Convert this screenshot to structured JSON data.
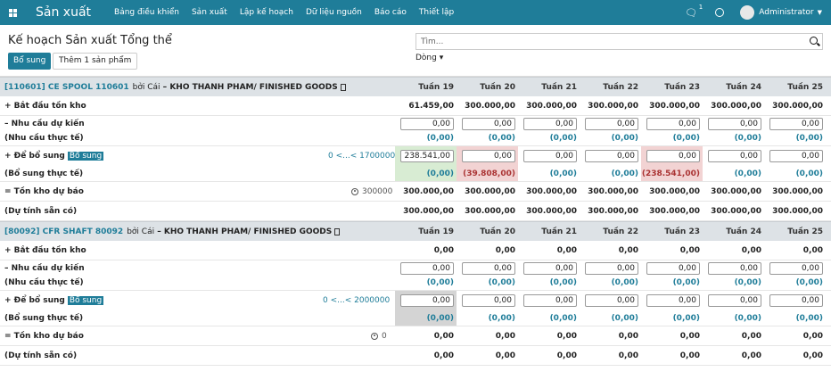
{
  "navbar": {
    "brand": "Sản xuất",
    "menu": [
      "Bảng điều khiển",
      "Sản xuất",
      "Lập kế hoạch",
      "Dữ liệu nguồn",
      "Báo cáo",
      "Thiết lập"
    ],
    "chat_count": "1",
    "user": "Administrator"
  },
  "control": {
    "title": "Kế hoạch Sản xuất Tổng thể",
    "btn_replenish": "Bổ sung",
    "btn_add": "Thêm 1 sản phẩm",
    "search_placeholder": "Tìm...",
    "groupby": "Dòng"
  },
  "products": [
    {
      "code": "[110601] CE SPOOL 110601",
      "unit_text": "bởi Cái",
      "warehouse": "KHO THANH PHAM/ FINISHED GOODS",
      "weeks": [
        "Tuần 19",
        "Tuần 20",
        "Tuần 21",
        "Tuần 22",
        "Tuần 23",
        "Tuần 24",
        "Tuần 25"
      ],
      "labels": {
        "start": "+ Bắt đầu tồn kho",
        "demand": "– Nhu cầu dự kiến",
        "demand_actual": "(Nhu cầu thực tế)",
        "replenish": "+ Để bổ sung",
        "replenish_tag": "Bổ sung",
        "replenish_actual": "(Bổ sung thực tế)",
        "forecast": "= Tồn kho dự báo",
        "available": "(Dự tính sẵn có)"
      },
      "range_text": "0 <...< 1700000",
      "safety_stock": "300000",
      "start": [
        "61.459,00",
        "300.000,00",
        "300.000,00",
        "300.000,00",
        "300.000,00",
        "300.000,00",
        "300.000,00"
      ],
      "demand": [
        "0,00",
        "0,00",
        "0,00",
        "0,00",
        "0,00",
        "0,00",
        "0,00"
      ],
      "demand_actual": [
        "(0,00)",
        "(0,00)",
        "(0,00)",
        "(0,00)",
        "(0,00)",
        "(0,00)",
        "(0,00)"
      ],
      "replenish": [
        "238.541,00",
        "0,00",
        "0,00",
        "0,00",
        "0,00",
        "0,00",
        "0,00"
      ],
      "replenish_actual": [
        "(0,00)",
        "(39.808,00)",
        "(0,00)",
        "(0,00)",
        "(238.541,00)",
        "(0,00)",
        "(0,00)"
      ],
      "forecast": [
        "300.000,00",
        "300.000,00",
        "300.000,00",
        "300.000,00",
        "300.000,00",
        "300.000,00",
        "300.000,00"
      ],
      "available": [
        "300.000,00",
        "300.000,00",
        "300.000,00",
        "300.000,00",
        "300.000,00",
        "300.000,00",
        "300.000,00"
      ],
      "highlight": [
        "green",
        "red",
        "",
        "",
        "red",
        "",
        ""
      ]
    },
    {
      "code": "[80092] CFR SHAFT 80092",
      "unit_text": "bởi Cái",
      "warehouse": "KHO THANH PHAM/ FINISHED GOODS",
      "weeks": [
        "Tuần 19",
        "Tuần 20",
        "Tuần 21",
        "Tuần 22",
        "Tuần 23",
        "Tuần 24",
        "Tuần 25"
      ],
      "labels": {
        "start": "+ Bắt đầu tồn kho",
        "demand": "– Nhu cầu dự kiến",
        "demand_actual": "(Nhu cầu thực tế)",
        "replenish": "+ Để bổ sung",
        "replenish_tag": "Bổ sung",
        "replenish_actual": "(Bổ sung thực tế)",
        "forecast": "= Tồn kho dự báo",
        "available": "(Dự tính sẵn có)"
      },
      "range_text": "0 <...< 2000000",
      "safety_stock": "0",
      "start": [
        "0,00",
        "0,00",
        "0,00",
        "0,00",
        "0,00",
        "0,00",
        "0,00"
      ],
      "demand": [
        "0,00",
        "0,00",
        "0,00",
        "0,00",
        "0,00",
        "0,00",
        "0,00"
      ],
      "demand_actual": [
        "(0,00)",
        "(0,00)",
        "(0,00)",
        "(0,00)",
        "(0,00)",
        "(0,00)",
        "(0,00)"
      ],
      "replenish": [
        "0,00",
        "0,00",
        "0,00",
        "0,00",
        "0,00",
        "0,00",
        "0,00"
      ],
      "replenish_actual": [
        "(0,00)",
        "(0,00)",
        "(0,00)",
        "(0,00)",
        "(0,00)",
        "(0,00)",
        "(0,00)"
      ],
      "forecast": [
        "0,00",
        "0,00",
        "0,00",
        "0,00",
        "0,00",
        "0,00",
        "0,00"
      ],
      "available": [
        "0,00",
        "0,00",
        "0,00",
        "0,00",
        "0,00",
        "0,00",
        "0,00"
      ],
      "highlight": [
        "grey",
        "",
        "",
        "",
        "",
        "",
        ""
      ]
    }
  ]
}
